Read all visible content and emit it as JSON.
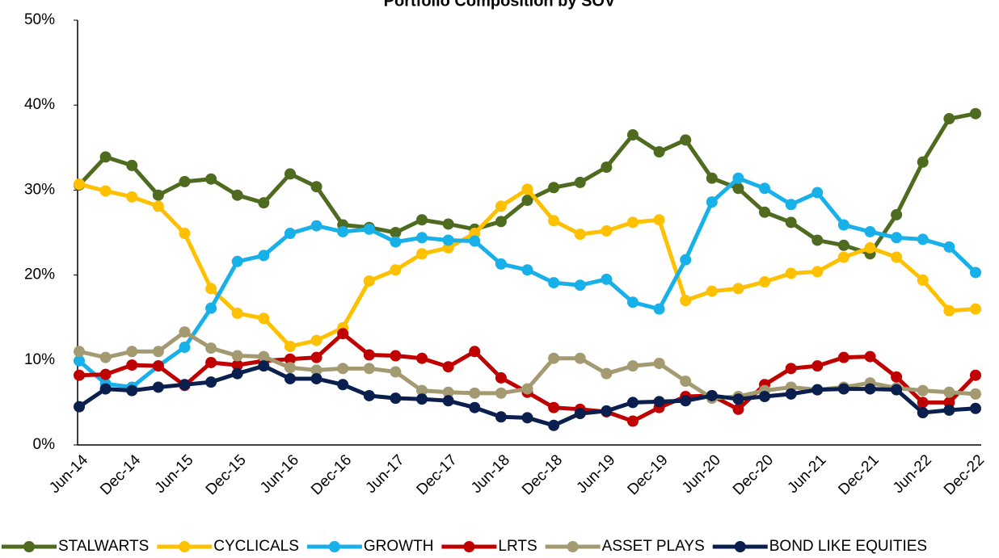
{
  "chart_data": {
    "type": "line",
    "title": "Portfolio Composition by SOV",
    "categories": [
      "Jun-14",
      null,
      "Dec-14",
      null,
      "Jun-15",
      null,
      "Dec-15",
      null,
      "Jun-16",
      null,
      "Dec-16",
      null,
      "Jun-17",
      null,
      "Dec-17",
      null,
      "Jun-18",
      null,
      "Dec-18",
      null,
      "Jun-19",
      null,
      "Dec-19",
      null,
      "Jun-20",
      null,
      "Dec-20",
      null,
      "Jun-21",
      null,
      "Dec-21",
      null,
      "Jun-22",
      null,
      "Dec-22"
    ],
    "ylim": [
      0,
      50
    ],
    "yticks": [
      {
        "value": 0,
        "label": "0%"
      },
      {
        "value": 10,
        "label": "10%"
      },
      {
        "value": 20,
        "label": "20%"
      },
      {
        "value": 30,
        "label": "30%"
      },
      {
        "value": 40,
        "label": "40%"
      },
      {
        "value": 50,
        "label": "50%"
      }
    ],
    "grid": false,
    "legend": "bottom",
    "series": [
      {
        "name": "STALWARTS",
        "color": "#4e6b1f",
        "values": [
          30.6,
          33.9,
          32.9,
          29.4,
          31.0,
          31.3,
          29.4,
          28.5,
          31.9,
          30.4,
          25.9,
          25.6,
          25.0,
          26.5,
          26.0,
          25.4,
          26.3,
          28.8,
          30.3,
          30.9,
          32.7,
          36.5,
          34.5,
          35.9,
          31.4,
          30.2,
          27.4,
          26.2,
          24.1,
          23.5,
          22.5,
          27.1,
          33.3,
          38.4,
          39.0
        ]
      },
      {
        "name": "CYCLICALS",
        "color": "#ffc000",
        "values": [
          30.7,
          29.9,
          29.2,
          28.1,
          24.9,
          18.4,
          15.5,
          14.9,
          11.6,
          12.3,
          13.8,
          19.3,
          20.6,
          22.5,
          23.2,
          24.9,
          28.1,
          30.1,
          26.4,
          24.8,
          25.2,
          26.2,
          26.5,
          17.0,
          18.1,
          18.4,
          19.2,
          20.2,
          20.4,
          22.1,
          23.2,
          22.1,
          19.4,
          15.8,
          16.0
        ]
      },
      {
        "name": "GROWTH",
        "color": "#18b0e8",
        "values": [
          9.9,
          7.2,
          6.8,
          9.3,
          11.5,
          16.1,
          21.6,
          22.3,
          24.9,
          25.8,
          25.1,
          25.4,
          23.9,
          24.4,
          24.1,
          24.0,
          21.3,
          20.6,
          19.1,
          18.8,
          19.5,
          16.8,
          16.0,
          21.8,
          28.6,
          31.4,
          30.2,
          28.3,
          29.7,
          25.9,
          25.1,
          24.4,
          24.2,
          23.3,
          20.3
        ]
      },
      {
        "name": "LRTS",
        "color": "#c00000",
        "values": [
          8.2,
          8.3,
          9.4,
          9.3,
          7.0,
          9.7,
          9.4,
          9.9,
          10.1,
          10.3,
          13.1,
          10.6,
          10.5,
          10.2,
          9.2,
          11.0,
          7.9,
          6.2,
          4.4,
          4.2,
          3.9,
          2.8,
          4.4,
          5.7,
          5.8,
          4.2,
          7.1,
          9.0,
          9.3,
          10.3,
          10.4,
          8.0,
          5.0,
          5.0,
          8.2
        ]
      },
      {
        "name": "ASSET PLAYS",
        "color": "#a39a72",
        "values": [
          11.0,
          10.3,
          11.0,
          11.0,
          13.3,
          11.4,
          10.5,
          10.4,
          9.1,
          8.8,
          9.0,
          9.0,
          8.6,
          6.4,
          6.2,
          6.1,
          6.1,
          6.6,
          10.2,
          10.2,
          8.4,
          9.3,
          9.6,
          7.5,
          5.5,
          5.7,
          6.4,
          6.8,
          6.5,
          6.8,
          7.3,
          6.7,
          6.4,
          6.2,
          6.0
        ]
      },
      {
        "name": "BOND LIKE EQUITIES",
        "color": "#0a1f4e",
        "values": [
          4.5,
          6.6,
          6.4,
          6.8,
          7.1,
          7.4,
          8.4,
          9.3,
          7.8,
          7.8,
          7.1,
          5.8,
          5.5,
          5.4,
          5.2,
          4.4,
          3.3,
          3.2,
          2.3,
          3.7,
          4.0,
          5.0,
          5.1,
          5.2,
          5.8,
          5.4,
          5.7,
          6.0,
          6.5,
          6.6,
          6.6,
          6.5,
          3.8,
          4.1,
          4.3
        ]
      }
    ]
  }
}
